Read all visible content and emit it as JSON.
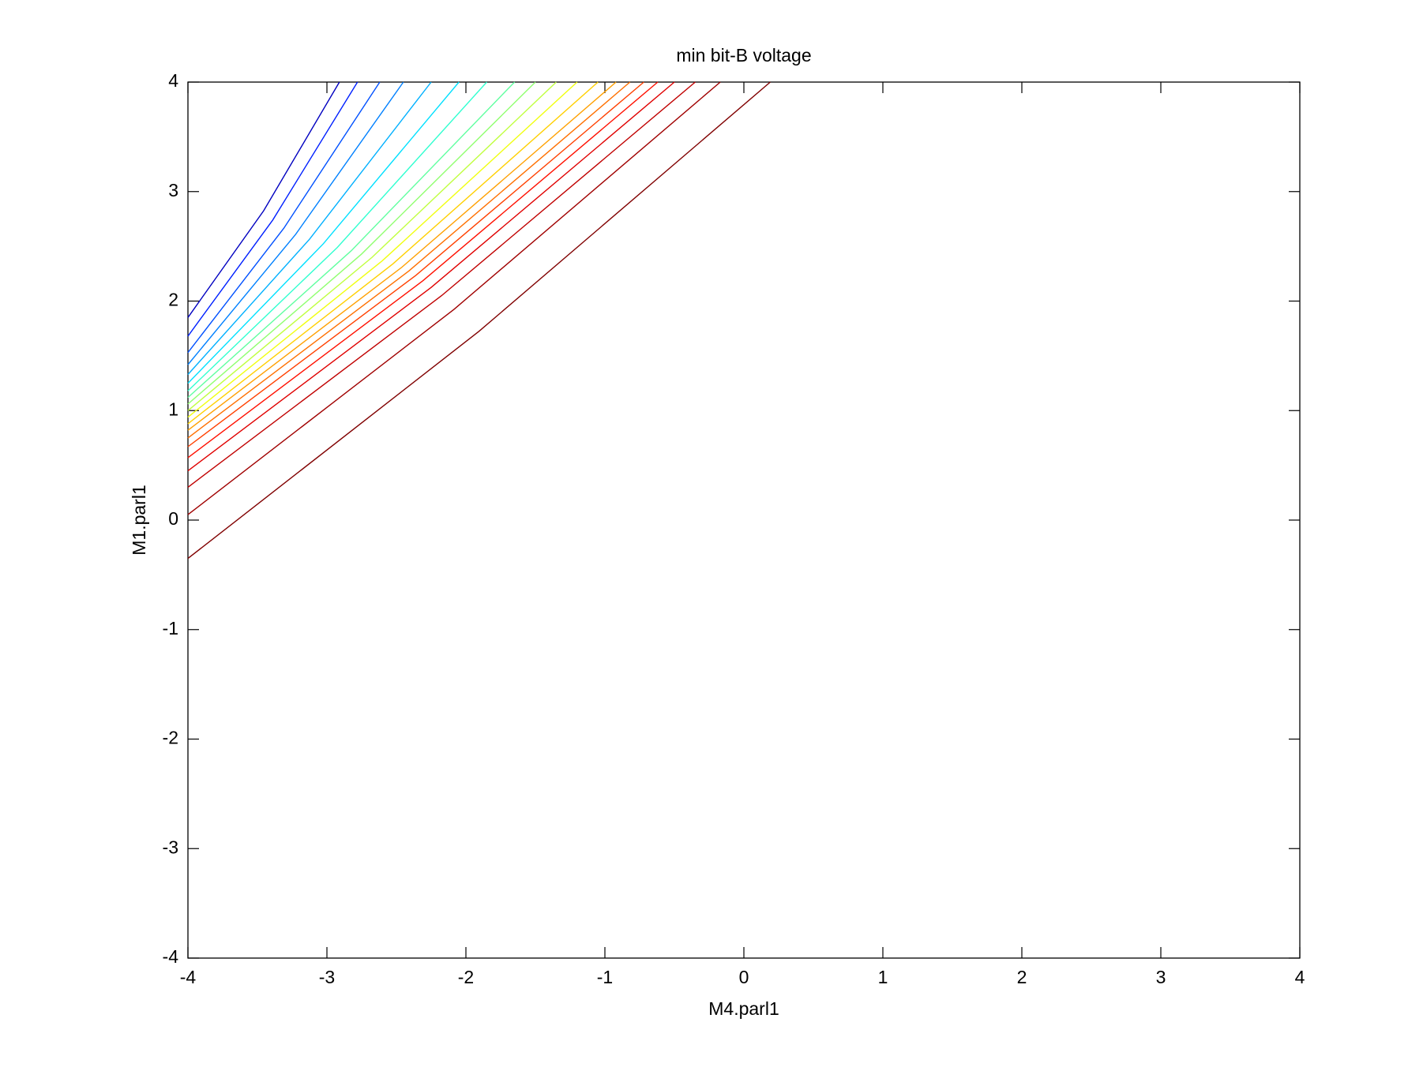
{
  "chart_data": {
    "type": "contour",
    "title": "min bit-B voltage",
    "xlabel": "M4.parl1",
    "ylabel": "M1.parl1",
    "xlim": [
      -4,
      4
    ],
    "ylim": [
      -4,
      4
    ],
    "xticks": [
      -4,
      -3,
      -2,
      -1,
      0,
      1,
      2,
      3,
      4
    ],
    "yticks": [
      -4,
      -3,
      -2,
      -1,
      0,
      1,
      2,
      3,
      4
    ],
    "series": [
      {
        "color": "#800000",
        "x": [
          -4,
          -1.905,
          0.19
        ],
        "y": [
          -0.35,
          1.725,
          4
        ]
      },
      {
        "color": "#a00000",
        "x": [
          -4,
          -2.085,
          -0.17
        ],
        "y": [
          0.05,
          1.925,
          4
        ]
      },
      {
        "color": "#c00000",
        "x": [
          -4,
          -2.175,
          -0.35
        ],
        "y": [
          0.3,
          2.05,
          4
        ]
      },
      {
        "color": "#e00000",
        "x": [
          -4,
          -2.25,
          -0.5
        ],
        "y": [
          0.45,
          2.125,
          4
        ]
      },
      {
        "color": "#ff1000",
        "x": [
          -4,
          -2.31,
          -0.62
        ],
        "y": [
          0.57,
          2.185,
          4
        ]
      },
      {
        "color": "#ff4000",
        "x": [
          -4,
          -2.36,
          -0.72
        ],
        "y": [
          0.67,
          2.235,
          4
        ]
      },
      {
        "color": "#ff7000",
        "x": [
          -4,
          -2.41,
          -0.82
        ],
        "y": [
          0.75,
          2.275,
          4
        ]
      },
      {
        "color": "#ffa000",
        "x": [
          -4,
          -2.46,
          -0.92
        ],
        "y": [
          0.82,
          2.31,
          4
        ]
      },
      {
        "color": "#ffd000",
        "x": [
          -4,
          -2.525,
          -1.05
        ],
        "y": [
          0.88,
          2.34,
          4
        ]
      },
      {
        "color": "#f0ff10",
        "x": [
          -4,
          -2.6,
          -1.2
        ],
        "y": [
          0.94,
          2.37,
          4
        ]
      },
      {
        "color": "#c0ff40",
        "x": [
          -4,
          -2.675,
          -1.35
        ],
        "y": [
          1.0,
          2.4,
          4
        ]
      },
      {
        "color": "#90ff70",
        "x": [
          -4,
          -2.75,
          -1.5
        ],
        "y": [
          1.06,
          2.43,
          4
        ]
      },
      {
        "color": "#60ffa0",
        "x": [
          -4,
          -2.825,
          -1.65
        ],
        "y": [
          1.12,
          2.46,
          4
        ]
      },
      {
        "color": "#30ffd0",
        "x": [
          -4,
          -2.925,
          -1.85
        ],
        "y": [
          1.18,
          2.49,
          4
        ]
      },
      {
        "color": "#00e0ff",
        "x": [
          -4,
          -3.025,
          -2.05
        ],
        "y": [
          1.25,
          2.525,
          4
        ]
      },
      {
        "color": "#00b0ff",
        "x": [
          -4,
          -3.125,
          -2.25
        ],
        "y": [
          1.33,
          2.565,
          4
        ]
      },
      {
        "color": "#0080ff",
        "x": [
          -4,
          -3.225,
          -2.45
        ],
        "y": [
          1.42,
          2.61,
          4
        ]
      },
      {
        "color": "#0050ff",
        "x": [
          -4,
          -3.31,
          -2.62
        ],
        "y": [
          1.53,
          2.665,
          4
        ]
      },
      {
        "color": "#0020ff",
        "x": [
          -4,
          -3.39,
          -2.78
        ],
        "y": [
          1.68,
          2.74,
          4
        ]
      },
      {
        "color": "#0000c0",
        "x": [
          -4,
          -3.455,
          -2.91
        ],
        "y": [
          1.85,
          2.825,
          4
        ]
      }
    ]
  }
}
